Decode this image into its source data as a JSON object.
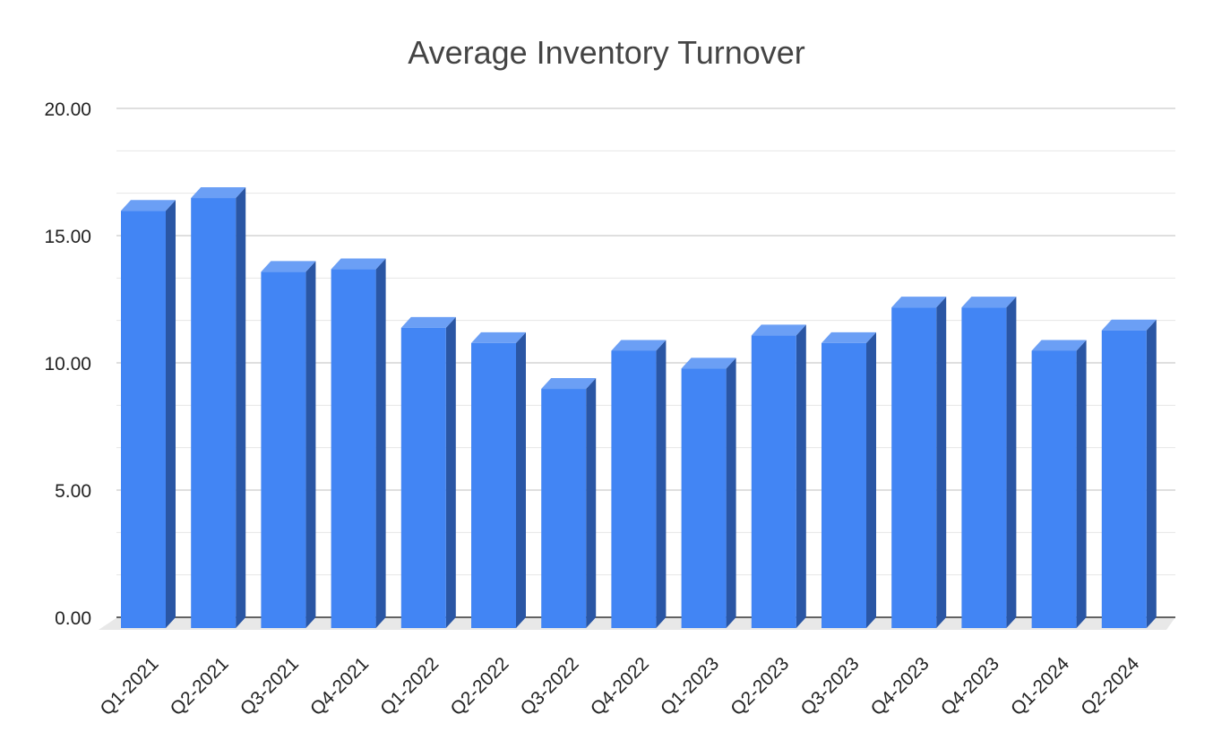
{
  "chart_data": {
    "type": "bar",
    "title": "Average Inventory Turnover",
    "xlabel": "",
    "ylabel": "",
    "categories": [
      "Q1-2021",
      "Q2-2021",
      "Q3-2021",
      "Q4-2021",
      "Q1-2022",
      "Q2-2022",
      "Q3-2022",
      "Q4-2022",
      "Q1-2023",
      "Q2-2023",
      "Q3-2023",
      "Q4-2023",
      "Q4-2023",
      "Q1-2024",
      "Q2-2024"
    ],
    "values": [
      16.4,
      16.9,
      14.0,
      14.1,
      11.8,
      11.2,
      9.4,
      10.9,
      10.2,
      11.5,
      11.2,
      12.6,
      12.6,
      10.9,
      11.7
    ],
    "ylim": [
      0,
      20
    ],
    "yticks": [
      "0.00",
      "5.00",
      "10.00",
      "15.00",
      "20.00"
    ],
    "grid": true,
    "legend": "none",
    "colors": {
      "bar_front": "#4285f4",
      "bar_side": "#2a56a4",
      "bar_top": "#6b9ff5",
      "gridline": "#cccccc",
      "minor_gridline": "#e6e6e6",
      "baseline": "#333333",
      "floor": "#e8e8e8",
      "title": "#444444",
      "tick_label": "#222222"
    }
  }
}
